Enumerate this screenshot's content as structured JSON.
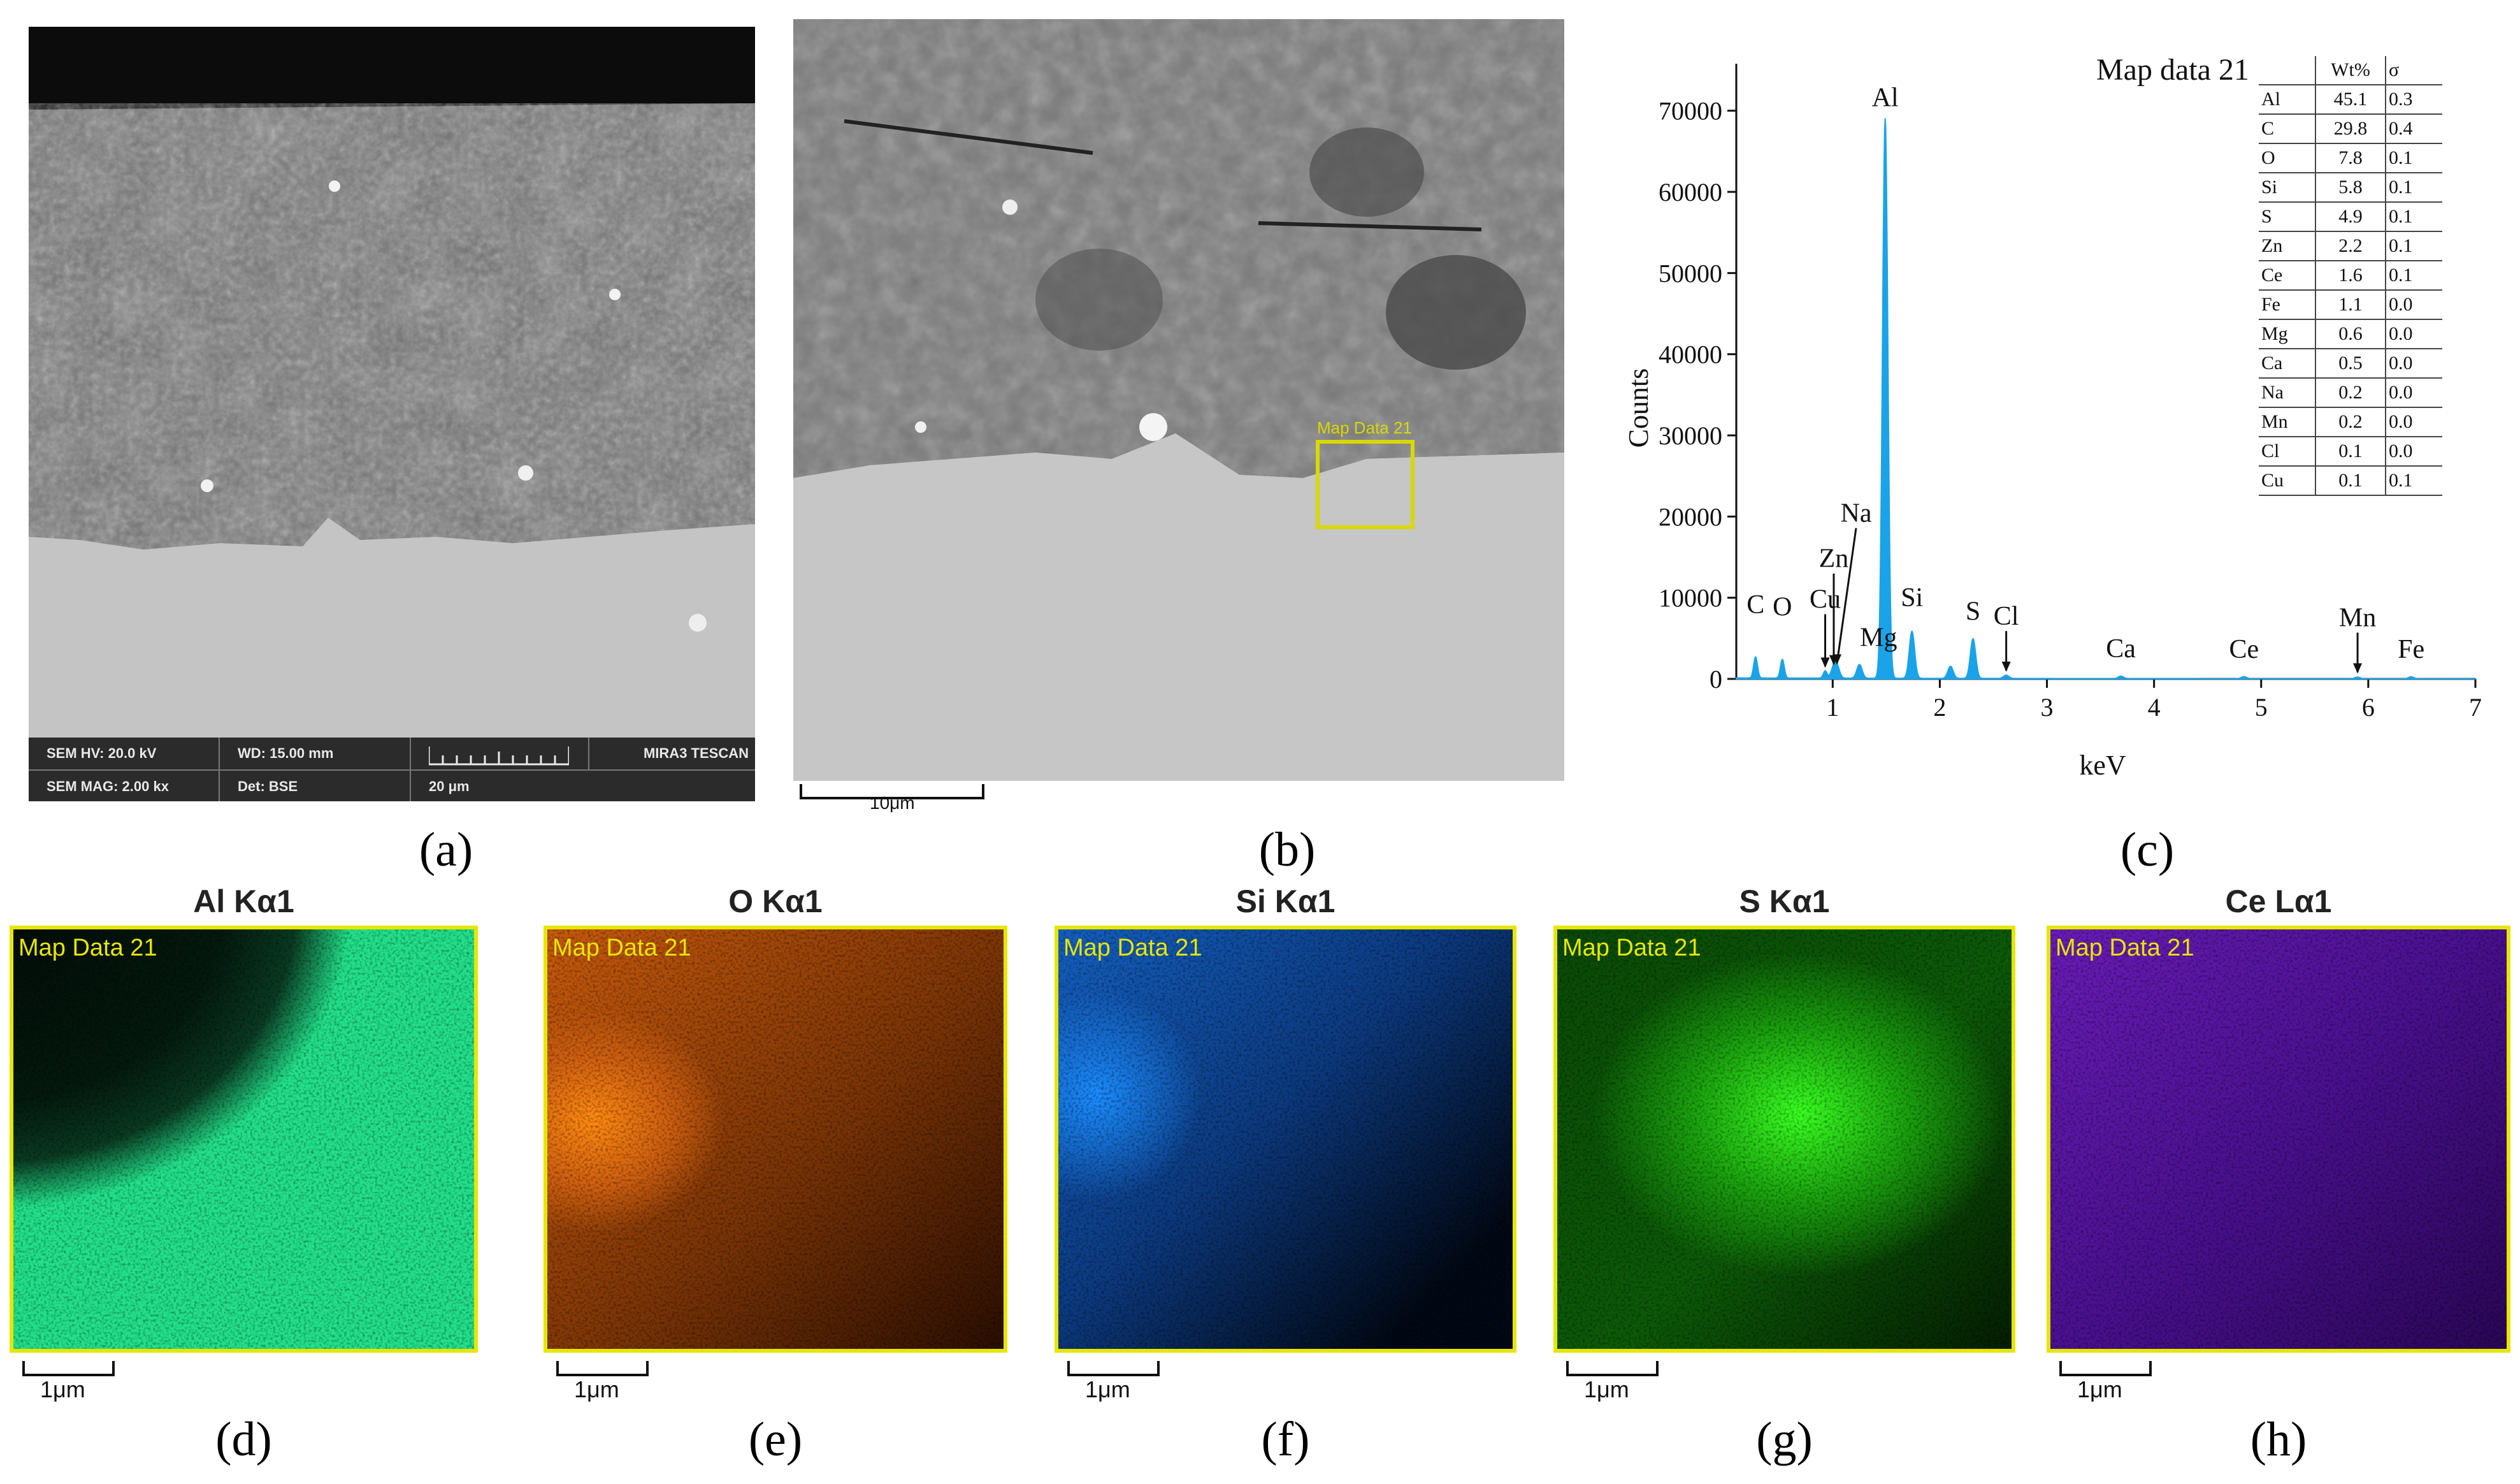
{
  "panel_a": {
    "caption": "(a)",
    "infobar": {
      "hv": "SEM HV: 20.0 kV",
      "wd": "WD: 15.00 mm",
      "brand": "MIRA3 TESCAN",
      "mag": "SEM MAG: 2.00 kx",
      "det": "Det: BSE",
      "scale": "20 μm"
    }
  },
  "panel_b": {
    "caption": "(b)",
    "map_label": "Map Data 21",
    "scale": "10μm"
  },
  "panel_c": {
    "caption": "(c)",
    "chart_data": {
      "type": "line",
      "title": "Map data 21",
      "xlabel": "keV",
      "ylabel": "Counts",
      "xlim": [
        0.1,
        7
      ],
      "ylim": [
        0,
        75000
      ],
      "x_ticks": [
        1,
        2,
        3,
        4,
        5,
        6,
        7
      ],
      "y_ticks": [
        0,
        10000,
        20000,
        30000,
        40000,
        50000,
        60000,
        70000
      ],
      "color": "#1aa3e8",
      "peaks": [
        {
          "x": 0.28,
          "y": 2600,
          "label": "C"
        },
        {
          "x": 0.53,
          "y": 2300,
          "label": "O"
        },
        {
          "x": 0.93,
          "y": 900,
          "label": "Cu"
        },
        {
          "x": 1.01,
          "y": 1200,
          "label": "Zn"
        },
        {
          "x": 1.04,
          "y": 1300,
          "label": "Na"
        },
        {
          "x": 1.25,
          "y": 1700,
          "label": "Mg"
        },
        {
          "x": 1.49,
          "y": 69000,
          "label": "Al"
        },
        {
          "x": 1.74,
          "y": 5800,
          "label": "Si"
        },
        {
          "x": 2.1,
          "y": 1500,
          "label": ""
        },
        {
          "x": 2.31,
          "y": 4900,
          "label": "S"
        },
        {
          "x": 2.62,
          "y": 400,
          "label": "Cl"
        },
        {
          "x": 3.69,
          "y": 300,
          "label": "Ca"
        },
        {
          "x": 4.84,
          "y": 250,
          "label": "Ce"
        },
        {
          "x": 5.9,
          "y": 200,
          "label": "Mn"
        },
        {
          "x": 6.4,
          "y": 250,
          "label": "Fe"
        }
      ],
      "table": {
        "headers": [
          "",
          "Wt%",
          "σ"
        ],
        "rows": [
          [
            "Al",
            "45.1",
            "0.3"
          ],
          [
            "C",
            "29.8",
            "0.4"
          ],
          [
            "O",
            "7.8",
            "0.1"
          ],
          [
            "Si",
            "5.8",
            "0.1"
          ],
          [
            "S",
            "4.9",
            "0.1"
          ],
          [
            "Zn",
            "2.2",
            "0.1"
          ],
          [
            "Ce",
            "1.6",
            "0.1"
          ],
          [
            "Fe",
            "1.1",
            "0.0"
          ],
          [
            "Mg",
            "0.6",
            "0.0"
          ],
          [
            "Ca",
            "0.5",
            "0.0"
          ],
          [
            "Na",
            "0.2",
            "0.0"
          ],
          [
            "Mn",
            "0.2",
            "0.0"
          ],
          [
            "Cl",
            "0.1",
            "0.0"
          ],
          [
            "Cu",
            "0.1",
            "0.1"
          ]
        ]
      }
    }
  },
  "maps": [
    {
      "title": "Al Kα1",
      "label": "Map Data 21",
      "scale": "1μm",
      "caption": "(d)",
      "color": "#22e08a"
    },
    {
      "title": "O Kα1",
      "label": "Map Data 21",
      "scale": "1μm",
      "caption": "(e)",
      "color": "#f07a10"
    },
    {
      "title": "Si Kα1",
      "label": "Map Data 21",
      "scale": "1μm",
      "caption": "(f)",
      "color": "#1a7ee8"
    },
    {
      "title": "S Kα1",
      "label": "Map Data 21",
      "scale": "1μm",
      "caption": "(g)",
      "color": "#30e020"
    },
    {
      "title": "Ce Lα1",
      "label": "Map Data 21",
      "scale": "1μm",
      "caption": "(h)",
      "color": "#8a2be8"
    }
  ]
}
